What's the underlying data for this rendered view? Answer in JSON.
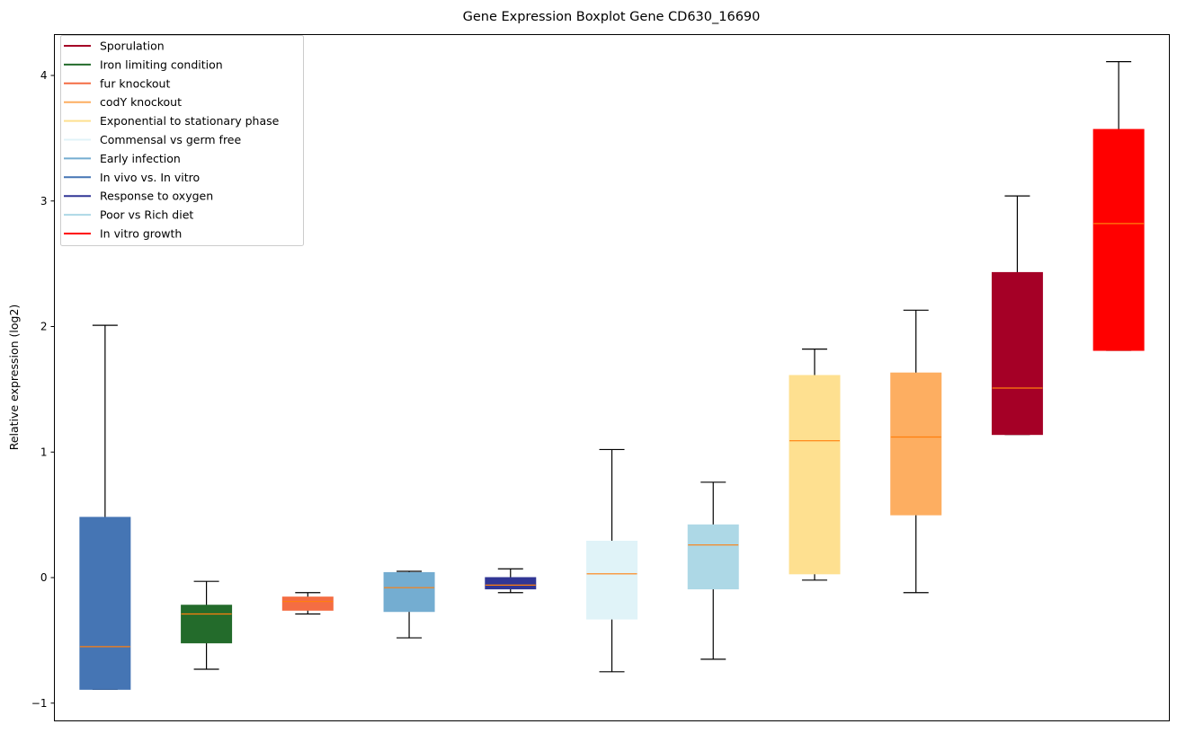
{
  "chart_data": {
    "type": "boxplot",
    "title": "Gene Expression Boxplot Gene CD630_16690",
    "xlabel": "",
    "ylabel": "Relative expression (log2)",
    "ylim": [
      -1.15,
      4.33
    ],
    "yticks": [
      -1,
      0,
      1,
      2,
      3,
      4
    ],
    "ytick_labels": [
      "−1",
      "0",
      "1",
      "2",
      "3",
      "4"
    ],
    "grid": false,
    "legend_placement": "top-left",
    "median_color": "#ff7f0e",
    "series": [
      {
        "name": "In vivo vs. In vitro",
        "color": "#4575b4",
        "whisker_low": -0.89,
        "q1": -0.89,
        "median": -0.55,
        "q3": 0.48,
        "whisker_high": 2.01
      },
      {
        "name": "Iron limiting condition",
        "color": "#236b2b",
        "whisker_low": -0.73,
        "q1": -0.52,
        "median": -0.29,
        "q3": -0.22,
        "whisker_high": -0.03
      },
      {
        "name": "fur knockout",
        "color": "#f46d43",
        "whisker_low": -0.29,
        "q1": -0.26,
        "median": -0.19,
        "q3": -0.155,
        "whisker_high": -0.12
      },
      {
        "name": "Early infection",
        "color": "#74add1",
        "whisker_low": -0.48,
        "q1": -0.27,
        "median": -0.08,
        "q3": 0.04,
        "whisker_high": 0.05
      },
      {
        "name": "Response to oxygen",
        "color": "#313695",
        "whisker_low": -0.12,
        "q1": -0.09,
        "median": -0.06,
        "q3": 0.0,
        "whisker_high": 0.07
      },
      {
        "name": "Commensal vs germ free",
        "color": "#e0f3f8",
        "whisker_low": -0.75,
        "q1": -0.33,
        "median": 0.03,
        "q3": 0.29,
        "whisker_high": 1.02
      },
      {
        "name": "Poor vs Rich diet",
        "color": "#add8e6",
        "whisker_low": -0.65,
        "q1": -0.09,
        "median": 0.26,
        "q3": 0.42,
        "whisker_high": 0.76
      },
      {
        "name": "Exponential to stationary phase",
        "color": "#fee090",
        "whisker_low": -0.02,
        "q1": 0.03,
        "median": 1.09,
        "q3": 1.61,
        "whisker_high": 1.82
      },
      {
        "name": "codY knockout",
        "color": "#fdae61",
        "whisker_low": -0.12,
        "q1": 0.5,
        "median": 1.12,
        "q3": 1.63,
        "whisker_high": 2.13
      },
      {
        "name": "Sporulation",
        "color": "#a50026",
        "whisker_low": 1.14,
        "q1": 1.14,
        "median": 1.51,
        "q3": 2.43,
        "whisker_high": 3.04
      },
      {
        "name": "In vitro growth",
        "color": "#ff0000",
        "whisker_low": 1.81,
        "q1": 1.81,
        "median": 2.82,
        "q3": 3.57,
        "whisker_high": 4.11
      }
    ],
    "legend": [
      {
        "label": "Sporulation",
        "color": "#a50026"
      },
      {
        "label": "Iron limiting condition",
        "color": "#236b2b"
      },
      {
        "label": "fur knockout",
        "color": "#f46d43"
      },
      {
        "label": "codY knockout",
        "color": "#fdae61"
      },
      {
        "label": "Exponential to stationary phase",
        "color": "#fee090"
      },
      {
        "label": "Commensal vs germ free",
        "color": "#e0f3f8"
      },
      {
        "label": "Early infection",
        "color": "#74add1"
      },
      {
        "label": "In vivo vs. In vitro",
        "color": "#4575b4"
      },
      {
        "label": "Response to oxygen",
        "color": "#313695"
      },
      {
        "label": "Poor vs Rich diet",
        "color": "#add8e6"
      },
      {
        "label": "In vitro growth",
        "color": "#ff0000"
      }
    ]
  }
}
